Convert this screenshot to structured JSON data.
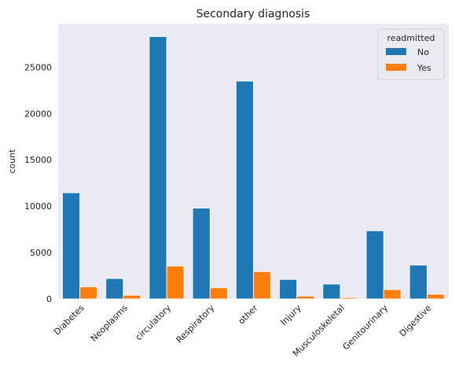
{
  "chart_data": {
    "type": "bar",
    "title": "Secondary diagnosis",
    "xlabel": "",
    "ylabel": "count",
    "categories": [
      "Diabetes",
      "Neoplasms",
      "circulatory",
      "Respiratory",
      "other",
      "Injury",
      "Musculoskeletal",
      "Genitourinary",
      "Digestive"
    ],
    "series": [
      {
        "name": "No",
        "values": [
          11450,
          2200,
          28300,
          9800,
          23500,
          2100,
          1600,
          7350,
          3650
        ]
      },
      {
        "name": "Yes",
        "values": [
          1300,
          400,
          3550,
          1200,
          2950,
          300,
          150,
          1000,
          500
        ]
      }
    ],
    "yticks": [
      0,
      5000,
      10000,
      15000,
      20000,
      25000
    ],
    "ylim": [
      0,
      29700
    ],
    "grid": false,
    "legend": {
      "title": "readmitted",
      "position": "top-right"
    },
    "colors": {
      "No": "#1f77b4",
      "Yes": "#ff7f0e",
      "plot_background": "#eaeaf2"
    }
  }
}
